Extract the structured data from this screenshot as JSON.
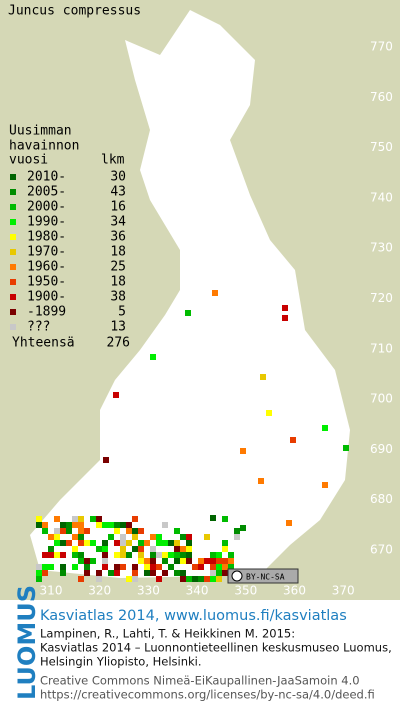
{
  "title": "Juncus compressus",
  "legend": {
    "header": [
      "Uusimman",
      "havainnon",
      "vuosi",
      "lkm"
    ],
    "items": [
      {
        "label": "2010-",
        "count": 30,
        "color": "#006400"
      },
      {
        "label": "2005-",
        "count": 43,
        "color": "#008c00"
      },
      {
        "label": "2000-",
        "count": 16,
        "color": "#00bb00"
      },
      {
        "label": "1990-",
        "count": 34,
        "color": "#00ee00"
      },
      {
        "label": "1980-",
        "count": 36,
        "color": "#ffff00"
      },
      {
        "label": "1970-",
        "count": 18,
        "color": "#e8c800"
      },
      {
        "label": "1960-",
        "count": 25,
        "color": "#ff7a00"
      },
      {
        "label": "1950-",
        "count": 18,
        "color": "#e83c00"
      },
      {
        "label": "1900-",
        "count": 38,
        "color": "#c80000"
      },
      {
        "label": "-1899",
        "count": 5,
        "color": "#7a0000"
      },
      {
        "label": "???",
        "count": 13,
        "color": "#c8c8c8"
      }
    ],
    "total_label": "Yhteensä",
    "total": 276
  },
  "grid": {
    "north": [
      770,
      760,
      750,
      740,
      730,
      720,
      710,
      700,
      690,
      680,
      670
    ],
    "east": [
      310,
      320,
      330,
      340,
      350,
      360,
      370
    ]
  },
  "badge": "BY-NC-SA",
  "footer": {
    "logo": "LUOMUS",
    "headline": "Kasviatlas 2014, www.luomus.fi/kasviatlas",
    "citation": [
      "Lampinen, R., Lahti, T. & Heikkinen M. 2015:",
      "Kasviatlas 2014 – Luonnontieteellinen keskusmuseo Luomus,",
      "Helsingin Yliopisto, Helsinki."
    ],
    "license": [
      "Creative Commons Nimeä-EiKaupallinen-JaaSamoin 4.0",
      "https://creativecommons.org/licenses/by-nc-sa/4.0/deed.fi"
    ]
  }
}
